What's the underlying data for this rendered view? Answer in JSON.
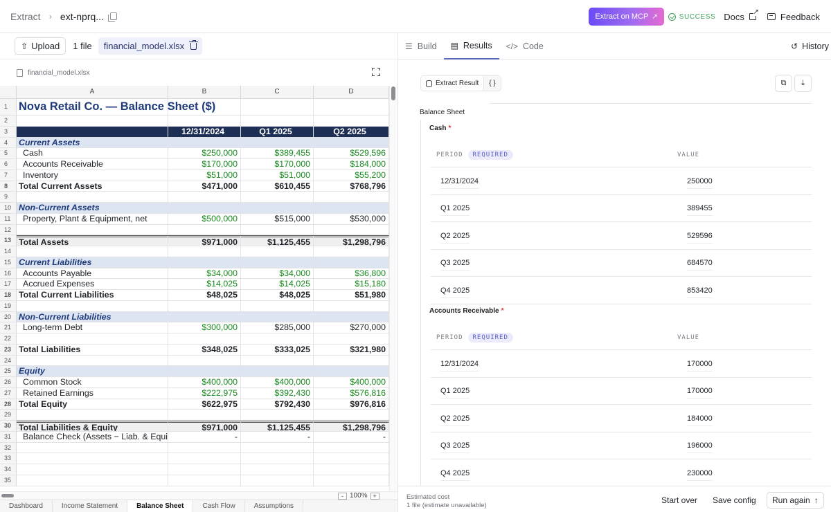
{
  "header": {
    "crumb_root": "Extract",
    "crumb_sep": "›",
    "crumb_current": "ext-nprq...",
    "mcp_label": "Extract on MCP",
    "status": "SUCCESS",
    "docs": "Docs",
    "feedback": "Feedback"
  },
  "left": {
    "upload_label": "Upload",
    "files_count": "1 file",
    "file_chip": "financial_model.xlsx",
    "file_name": "financial_model.xlsx"
  },
  "sheet": {
    "columns": [
      "A",
      "B",
      "C",
      "D"
    ],
    "rows": [
      {
        "n": "1",
        "a": "Nova Retail Co. — Balance Sheet ($)",
        "b": "",
        "c": "",
        "d": "",
        "type": "title"
      },
      {
        "n": "2",
        "a": "",
        "b": "",
        "c": "",
        "d": ""
      },
      {
        "n": "3",
        "a": "",
        "b": "12/31/2024",
        "c": "Q1 2025",
        "d": "Q2 2025",
        "type": "hdr"
      },
      {
        "n": "4",
        "a": "Current Assets",
        "b": "",
        "c": "",
        "d": "",
        "type": "sec"
      },
      {
        "n": "5",
        "a": "Cash",
        "b": "$250,000",
        "c": "$389,455",
        "d": "$529,596",
        "indent": true,
        "green": "bcd"
      },
      {
        "n": "6",
        "a": "Accounts Receivable",
        "b": "$170,000",
        "c": "$170,000",
        "d": "$184,000",
        "indent": true,
        "green": "bcd"
      },
      {
        "n": "7",
        "a": "Inventory",
        "b": "$51,000",
        "c": "$51,000",
        "d": "$55,200",
        "indent": true,
        "green": "bcd"
      },
      {
        "n": "8",
        "a": "Total Current Assets",
        "b": "$471,000",
        "c": "$610,455",
        "d": "$768,796",
        "bold": true
      },
      {
        "n": "9",
        "a": "",
        "b": "",
        "c": "",
        "d": ""
      },
      {
        "n": "10",
        "a": "Non-Current Assets",
        "b": "",
        "c": "",
        "d": "",
        "type": "sec"
      },
      {
        "n": "11",
        "a": "Property, Plant & Equipment, net",
        "b": "$500,000",
        "c": "$515,000",
        "d": "$530,000",
        "indent": true,
        "green": "b"
      },
      {
        "n": "12",
        "a": "",
        "b": "",
        "c": "",
        "d": ""
      },
      {
        "n": "13",
        "a": "Total Assets",
        "b": "$971,000",
        "c": "$1,125,455",
        "d": "$1,298,796",
        "bold": true,
        "type": "dbl"
      },
      {
        "n": "14",
        "a": "",
        "b": "",
        "c": "",
        "d": ""
      },
      {
        "n": "15",
        "a": "Current Liabilities",
        "b": "",
        "c": "",
        "d": "",
        "type": "sec"
      },
      {
        "n": "16",
        "a": "Accounts Payable",
        "b": "$34,000",
        "c": "$34,000",
        "d": "$36,800",
        "indent": true,
        "green": "bcd"
      },
      {
        "n": "17",
        "a": "Accrued Expenses",
        "b": "$14,025",
        "c": "$14,025",
        "d": "$15,180",
        "indent": true,
        "green": "bcd"
      },
      {
        "n": "18",
        "a": "Total Current Liabilities",
        "b": "$48,025",
        "c": "$48,025",
        "d": "$51,980",
        "bold": true
      },
      {
        "n": "19",
        "a": "",
        "b": "",
        "c": "",
        "d": ""
      },
      {
        "n": "20",
        "a": "Non-Current Liabilities",
        "b": "",
        "c": "",
        "d": "",
        "type": "sec"
      },
      {
        "n": "21",
        "a": "Long-term Debt",
        "b": "$300,000",
        "c": "$285,000",
        "d": "$270,000",
        "indent": true,
        "green": "b"
      },
      {
        "n": "22",
        "a": "",
        "b": "",
        "c": "",
        "d": ""
      },
      {
        "n": "23",
        "a": "Total Liabilities",
        "b": "$348,025",
        "c": "$333,025",
        "d": "$321,980",
        "bold": true
      },
      {
        "n": "24",
        "a": "",
        "b": "",
        "c": "",
        "d": ""
      },
      {
        "n": "25",
        "a": "Equity",
        "b": "",
        "c": "",
        "d": "",
        "type": "sec"
      },
      {
        "n": "26",
        "a": "Common Stock",
        "b": "$400,000",
        "c": "$400,000",
        "d": "$400,000",
        "indent": true,
        "green": "bcd"
      },
      {
        "n": "27",
        "a": "Retained Earnings",
        "b": "$222,975",
        "c": "$392,430",
        "d": "$576,816",
        "indent": true,
        "green": "bcd"
      },
      {
        "n": "28",
        "a": "Total Equity",
        "b": "$622,975",
        "c": "$792,430",
        "d": "$976,816",
        "bold": true
      },
      {
        "n": "29",
        "a": "",
        "b": "",
        "c": "",
        "d": ""
      },
      {
        "n": "30",
        "a": "Total Liabilities & Equity",
        "b": "$971,000",
        "c": "$1,125,455",
        "d": "$1,298,796",
        "bold": true,
        "type": "dbl"
      },
      {
        "n": "31",
        "a": "Balance Check (Assets − Liab. & Equity)",
        "b": "-",
        "c": "-",
        "d": "-",
        "indent": true
      },
      {
        "n": "32",
        "a": "",
        "b": "",
        "c": "",
        "d": ""
      },
      {
        "n": "33",
        "a": "",
        "b": "",
        "c": "",
        "d": ""
      },
      {
        "n": "34",
        "a": "",
        "b": "",
        "c": "",
        "d": ""
      },
      {
        "n": "35",
        "a": "",
        "b": "",
        "c": "",
        "d": ""
      }
    ],
    "zoom": "100%",
    "zoom_minus": "-",
    "zoom_plus": "+",
    "tabs": [
      "Dashboard",
      "Income Statement",
      "Balance Sheet",
      "Cash Flow",
      "Assumptions"
    ],
    "active_tab": "Balance Sheet"
  },
  "right": {
    "tabs": {
      "build": "Build",
      "results": "Results",
      "code": "Code"
    },
    "history": "History",
    "result_toggle": "Extract Result",
    "json_toggle": "{ }",
    "section_title": "Balance Sheet",
    "fields": [
      {
        "name": "Cash",
        "period_header": "PERIOD",
        "required_badge": "REQUIRED",
        "value_header": "VALUE",
        "rows": [
          {
            "period": "12/31/2024",
            "value": "250000"
          },
          {
            "period": "Q1 2025",
            "value": "389455"
          },
          {
            "period": "Q2 2025",
            "value": "529596"
          },
          {
            "period": "Q3 2025",
            "value": "684570"
          },
          {
            "period": "Q4 2025",
            "value": "853420"
          }
        ]
      },
      {
        "name": "Accounts Receivable",
        "period_header": "PERIOD",
        "required_badge": "REQUIRED",
        "value_header": "VALUE",
        "rows": [
          {
            "period": "12/31/2024",
            "value": "170000"
          },
          {
            "period": "Q1 2025",
            "value": "170000"
          },
          {
            "period": "Q2 2025",
            "value": "184000"
          },
          {
            "period": "Q3 2025",
            "value": "196000"
          },
          {
            "period": "Q4 2025",
            "value": "230000"
          }
        ]
      }
    ],
    "required_mark": "*",
    "footer": {
      "est_label": "Estimated cost",
      "est_value": "1 file (estimate unavailable)",
      "start_over": "Start over",
      "save_config": "Save config",
      "run_again": "Run again"
    }
  }
}
